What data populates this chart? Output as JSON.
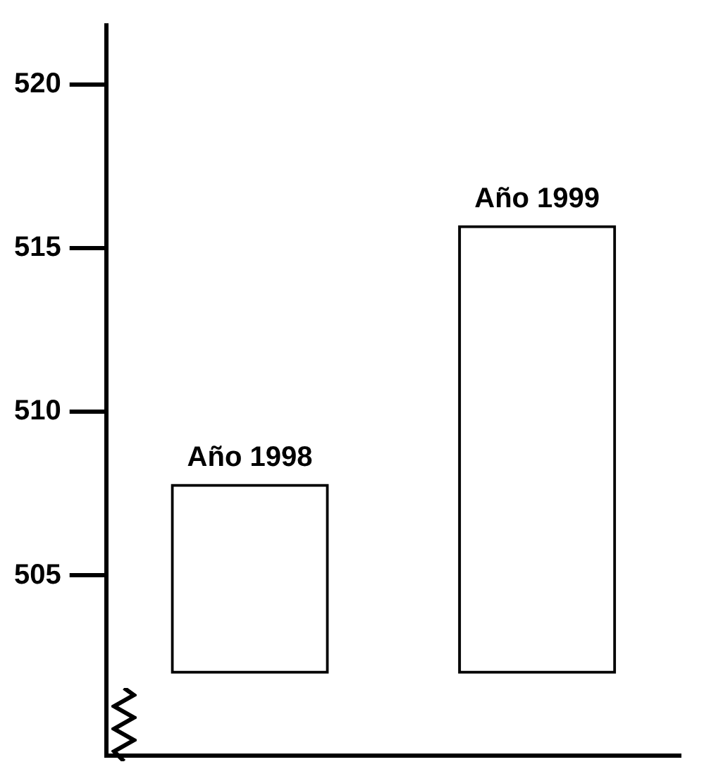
{
  "chart_data": {
    "type": "bar",
    "categories": [
      "Año 1998",
      "Año 1999"
    ],
    "base": [
      502,
      502
    ],
    "values": [
      5.8,
      13.7
    ],
    "color": "#000000",
    "ylim": [
      499.5,
      521.8
    ],
    "yticks": [
      505,
      510,
      515,
      520
    ],
    "grid": false,
    "legend": false
  }
}
